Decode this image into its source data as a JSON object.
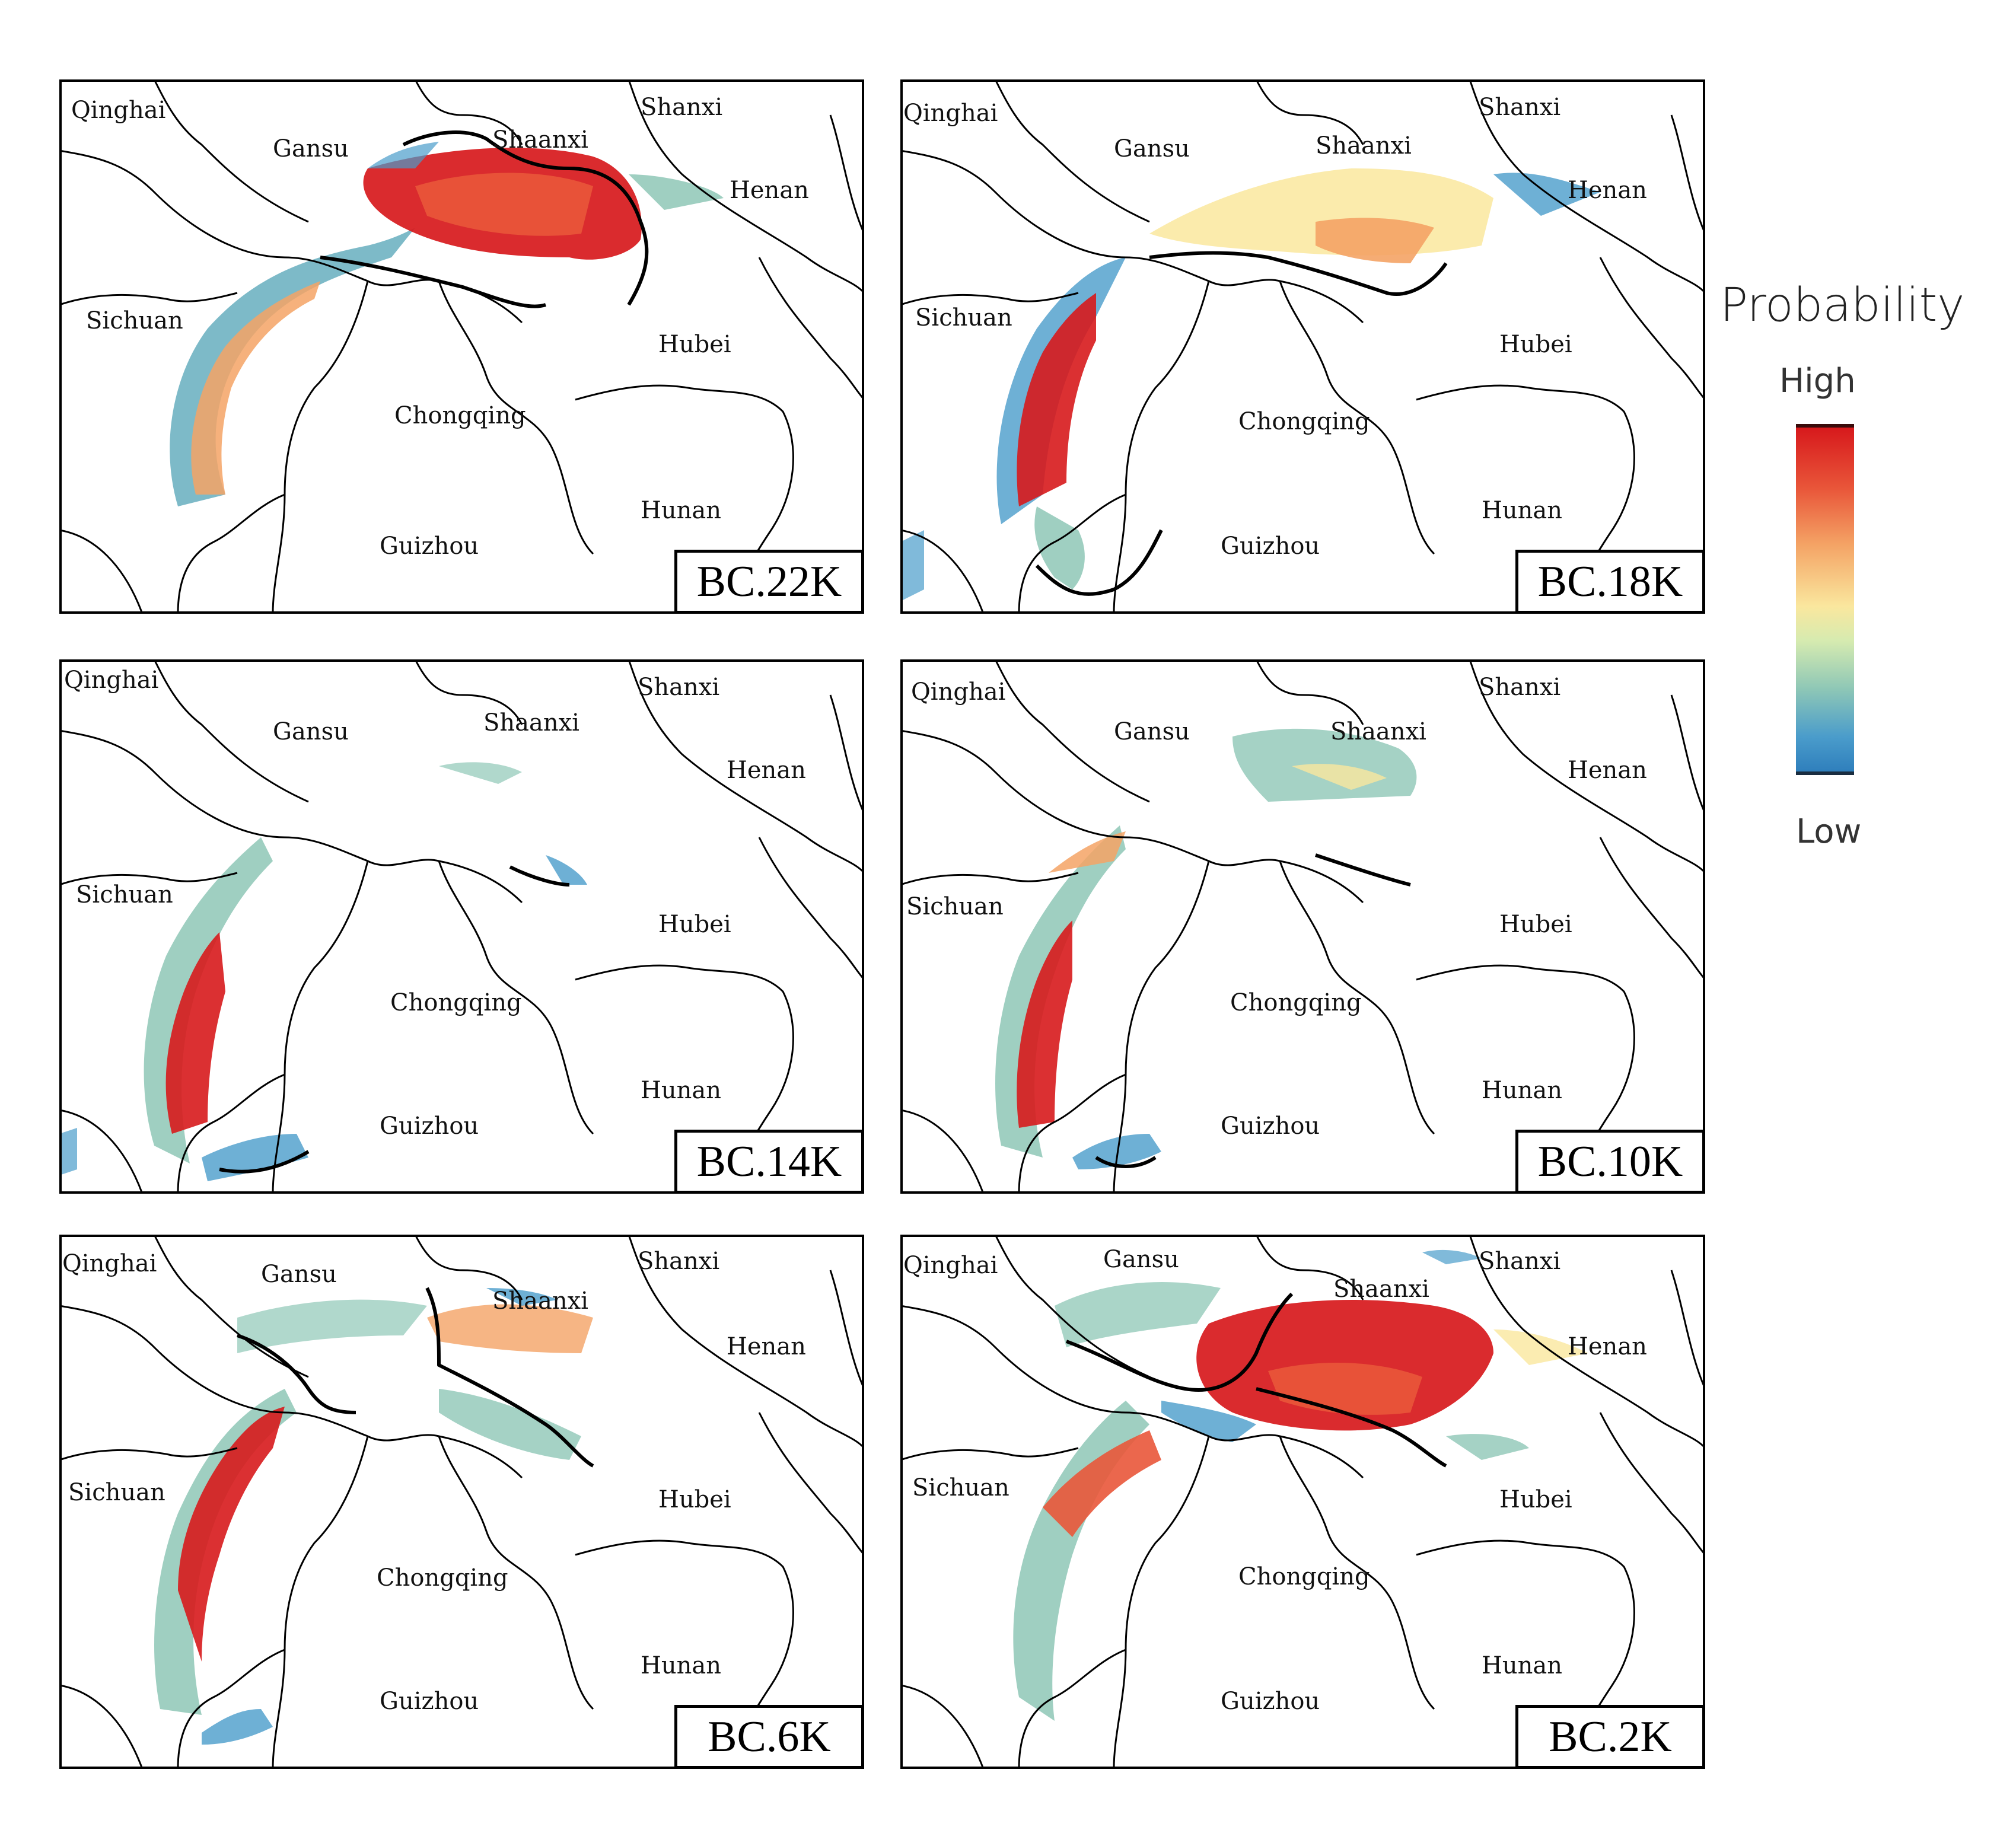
{
  "provinces": {
    "qinghai": "Qinghai",
    "gansu": "Gansu",
    "shaanxi": "Shaanxi",
    "shanxi": "Shanxi",
    "henan": "Henan",
    "sichuan": "Sichuan",
    "hubei": "Hubei",
    "chongqing": "Chongqing",
    "hunan": "Hunan",
    "guizhou": "Guizhou"
  },
  "panels": [
    {
      "label": "BC.22K"
    },
    {
      "label": "BC.18K"
    },
    {
      "label": "BC.14K"
    },
    {
      "label": "BC.10K"
    },
    {
      "label": "BC.6K"
    },
    {
      "label": "BC.2K"
    }
  ],
  "legend": {
    "title": "Probability",
    "high": "High",
    "low": "Low",
    "colors": {
      "high": "#d7191c",
      "mid": "#fae79e",
      "low": "#2f7fbc"
    }
  }
}
